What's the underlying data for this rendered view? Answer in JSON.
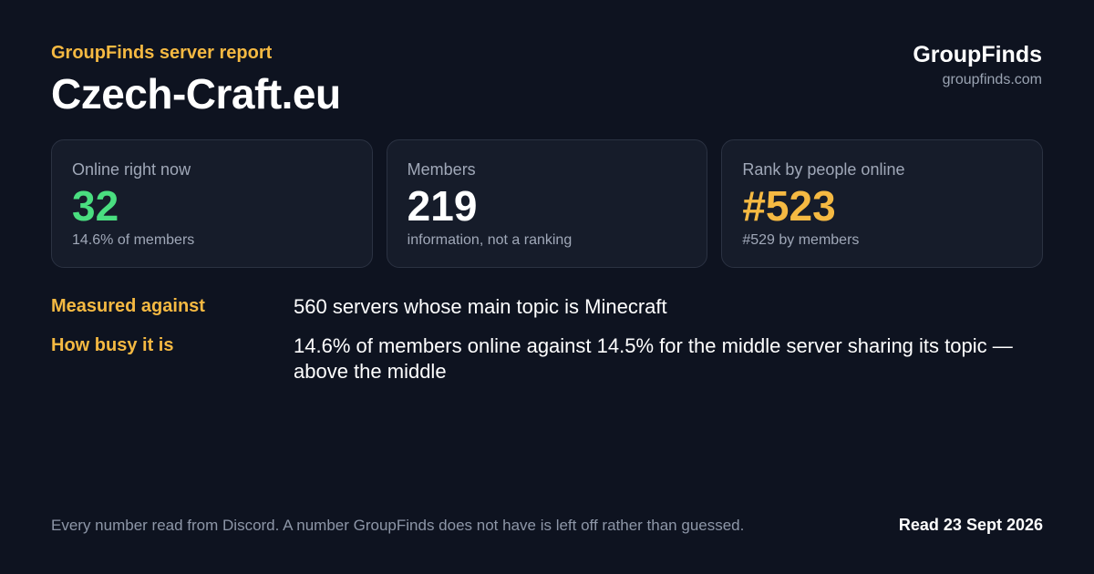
{
  "header": {
    "eyebrow": "GroupFinds server report",
    "server_name": "Czech-Craft.eu"
  },
  "brand": {
    "name": "GroupFinds",
    "url": "groupfinds.com"
  },
  "cards": [
    {
      "label": "Online right now",
      "value": "32",
      "sub": "14.6% of members",
      "accent": "#4ade80"
    },
    {
      "label": "Members",
      "value": "219",
      "sub": "information, not a ranking",
      "accent": "#ffffff"
    },
    {
      "label": "Rank by people online",
      "value": "#523",
      "sub": "#529 by members",
      "accent": "#f5b942"
    }
  ],
  "facts": [
    {
      "label": "Measured against",
      "value": "560 servers whose main topic is Minecraft"
    },
    {
      "label": "How busy it is",
      "value": "14.6% of members online against 14.5% for the middle server sharing its topic — above the middle"
    }
  ],
  "footer": {
    "note": "Every number read from Discord. A number GroupFinds does not have is left off rather than guessed.",
    "date": "Read 23 Sept 2026"
  },
  "colors": {
    "background": "#0e1320",
    "card_background": "#161c2a",
    "accent_amber": "#f5b942",
    "accent_green": "#4ade80"
  }
}
